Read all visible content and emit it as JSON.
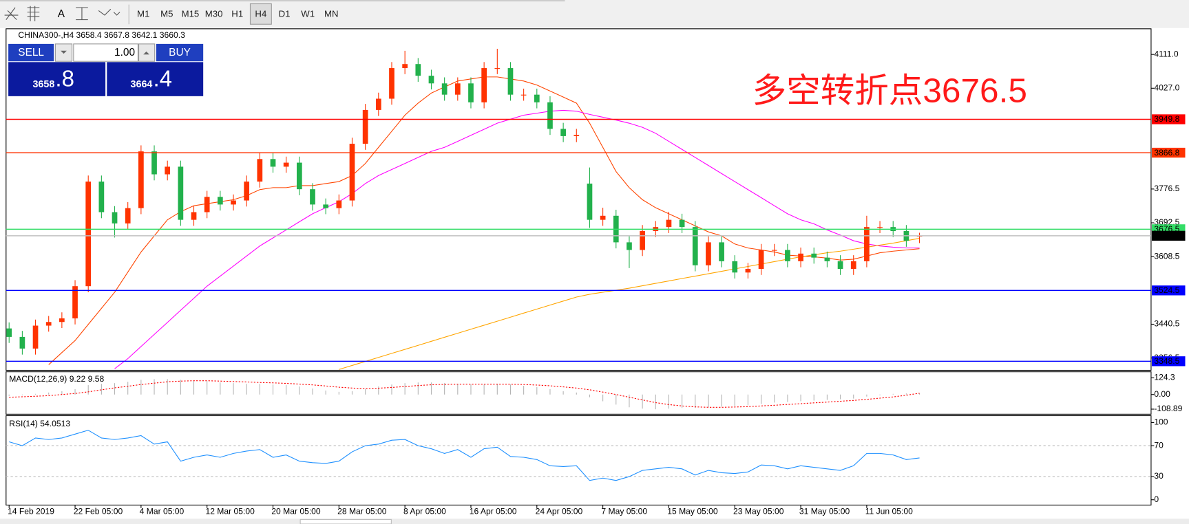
{
  "toolbar": {
    "text_tool": "A",
    "timeframes": [
      "M1",
      "M5",
      "M15",
      "M30",
      "H1",
      "H4",
      "D1",
      "W1",
      "MN"
    ],
    "active": "H4"
  },
  "trade_panel": {
    "sell_label": "SELL",
    "buy_label": "BUY",
    "lot": "1.00",
    "sell_main": "3658",
    "sell_tail": ".8",
    "buy_main": "3664",
    "buy_tail": ".4"
  },
  "annotation": "多空转折点3676.5",
  "chart_data": [
    {
      "type": "candlestick",
      "title": "CHINA300-,H4 3658.4 3667.8 3642.1 3660.3",
      "categories": [
        "14 Feb 2019",
        null,
        null,
        null,
        null,
        "22 Feb 05:00",
        null,
        null,
        null,
        null,
        "4 Mar 05:00",
        null,
        null,
        null,
        null,
        "12 Mar 05:00",
        null,
        null,
        null,
        null,
        "20 Mar 05:00",
        null,
        null,
        null,
        null,
        "28 Mar 05:00",
        null,
        null,
        null,
        null,
        "8 Apr 05:00",
        null,
        null,
        null,
        null,
        "16 Apr 05:00",
        null,
        null,
        null,
        null,
        "24 Apr 05:00",
        null,
        null,
        null,
        null,
        "7 May 05:00",
        null,
        null,
        null,
        null,
        "15 May 05:00",
        null,
        null,
        null,
        null,
        "23 May 05:00",
        null,
        null,
        null,
        null,
        "31 May 05:00",
        null,
        null,
        null,
        null,
        "11 Jun 05:00",
        null,
        null,
        null,
        null
      ],
      "open": [
        3430,
        3409,
        3380,
        3437,
        3446,
        3455,
        3535,
        3795,
        3719,
        3691,
        3729,
        3870,
        3813,
        3832,
        3700,
        3719,
        3757,
        3738,
        3748,
        3795,
        3851,
        3832,
        3842,
        3776,
        3738,
        3729,
        3748,
        3889,
        3973,
        4001,
        4077,
        4087,
        4058,
        4039,
        4011,
        4039,
        3992,
        4077,
        4077,
        4011,
        4011,
        3992,
        3926,
        3908,
        3790,
        3700,
        3710,
        3644,
        3625,
        3672,
        3682,
        3700,
        3682,
        3587,
        3644,
        3597,
        3569,
        3578,
        3625,
        3625,
        3597,
        3616,
        3606,
        3597,
        3578,
        3597,
        3682,
        3682,
        3672,
        3658.4
      ],
      "high": [
        3445,
        3424,
        3452,
        3461,
        3470,
        3550,
        3810,
        3810,
        3734,
        3744,
        3885,
        3885,
        3847,
        3847,
        3734,
        3772,
        3772,
        3763,
        3810,
        3866,
        3866,
        3857,
        3857,
        3791,
        3753,
        3763,
        3904,
        3988,
        4016,
        4092,
        4120,
        4102,
        4073,
        4054,
        4054,
        4054,
        4092,
        4125,
        4092,
        4026,
        4026,
        4007,
        3941,
        3926,
        3830,
        3730,
        3725,
        3659,
        3687,
        3697,
        3720,
        3715,
        3697,
        3659,
        3659,
        3612,
        3593,
        3640,
        3640,
        3640,
        3631,
        3631,
        3621,
        3612,
        3612,
        3710,
        3697,
        3697,
        3687,
        3667.8
      ],
      "low": [
        3394,
        3365,
        3365,
        3422,
        3431,
        3440,
        3520,
        3704,
        3656,
        3676,
        3714,
        3798,
        3798,
        3685,
        3685,
        3704,
        3723,
        3723,
        3733,
        3780,
        3817,
        3817,
        3761,
        3723,
        3714,
        3714,
        3733,
        3874,
        3958,
        3986,
        4062,
        4043,
        4024,
        3996,
        3996,
        3977,
        3977,
        4062,
        3996,
        3996,
        3977,
        3911,
        3893,
        3893,
        3680,
        3685,
        3629,
        3580,
        3610,
        3657,
        3667,
        3667,
        3572,
        3572,
        3582,
        3554,
        3554,
        3563,
        3610,
        3582,
        3582,
        3591,
        3582,
        3563,
        3563,
        3582,
        3667,
        3657,
        3633,
        3642.1
      ],
      "close": [
        3409,
        3380,
        3437,
        3446,
        3455,
        3535,
        3795,
        3719,
        3691,
        3729,
        3870,
        3813,
        3832,
        3700,
        3719,
        3757,
        3738,
        3748,
        3795,
        3851,
        3832,
        3842,
        3776,
        3738,
        3729,
        3748,
        3889,
        3973,
        4001,
        4077,
        4087,
        4058,
        4039,
        4011,
        4039,
        3992,
        4077,
        4077,
        4011,
        4011,
        3992,
        3926,
        3908,
        3911,
        3700,
        3710,
        3644,
        3625,
        3672,
        3682,
        3700,
        3682,
        3587,
        3644,
        3597,
        3569,
        3578,
        3625,
        3625,
        3597,
        3616,
        3606,
        3597,
        3578,
        3597,
        3682,
        3682,
        3672,
        3648,
        3660.3
      ],
      "up_color": "#ff3300",
      "down_color": "#22b14c",
      "ma": [
        {
          "color": "#ff4500",
          "values": [
            null,
            null,
            null,
            3340,
            3370,
            3400,
            3440,
            3480,
            3520,
            3570,
            3620,
            3660,
            3700,
            3720,
            3735,
            3740,
            3745,
            3750,
            3760,
            3775,
            3780,
            3780,
            3785,
            3785,
            3790,
            3795,
            3810,
            3840,
            3880,
            3920,
            3960,
            3990,
            4015,
            4030,
            4045,
            4050,
            4055,
            4055,
            4050,
            4045,
            4035,
            4020,
            4005,
            3990,
            3940,
            3880,
            3820,
            3780,
            3750,
            3730,
            3715,
            3700,
            3685,
            3670,
            3660,
            3640,
            3630,
            3625,
            3620,
            3612,
            3610,
            3608,
            3605,
            3600,
            3602,
            3610,
            3618,
            3622,
            3625,
            3628
          ]
        },
        {
          "color": "#ff00ff",
          "values": [
            null,
            null,
            null,
            null,
            null,
            null,
            null,
            null,
            3330,
            3355,
            3385,
            3415,
            3445,
            3475,
            3505,
            3535,
            3560,
            3585,
            3610,
            3635,
            3655,
            3675,
            3695,
            3715,
            3730,
            3745,
            3765,
            3790,
            3810,
            3825,
            3840,
            3855,
            3870,
            3880,
            3895,
            3910,
            3925,
            3940,
            3950,
            3960,
            3965,
            3970,
            3972,
            3970,
            3962,
            3955,
            3948,
            3940,
            3930,
            3915,
            3895,
            3875,
            3855,
            3835,
            3815,
            3795,
            3775,
            3755,
            3735,
            3715,
            3700,
            3690,
            3675,
            3662,
            3648,
            3640,
            3635,
            3632,
            3630,
            3630
          ]
        },
        {
          "color": "#ffa500",
          "values": [
            null,
            null,
            null,
            null,
            null,
            null,
            null,
            null,
            null,
            null,
            null,
            null,
            null,
            null,
            null,
            null,
            null,
            null,
            null,
            null,
            null,
            null,
            null,
            null,
            null,
            3328,
            3338,
            3348,
            3358,
            3368,
            3378,
            3388,
            3398,
            3408,
            3418,
            3428,
            3438,
            3448,
            3458,
            3468,
            3478,
            3488,
            3498,
            3508,
            3515,
            3520,
            3525,
            3530,
            3536,
            3542,
            3548,
            3554,
            3560,
            3566,
            3572,
            3578,
            3584,
            3590,
            3596,
            3602,
            3608,
            3613,
            3618,
            3622,
            3627,
            3632,
            3637,
            3642,
            3648,
            3654
          ]
        }
      ],
      "levels": [
        {
          "value": 3949.8,
          "color": "#ff0000"
        },
        {
          "value": 3866.8,
          "color": "#ff3300"
        },
        {
          "value": 3676.5,
          "color": "#33dd66"
        },
        {
          "value": 3660.3,
          "color": "#c0c0c0",
          "box_color": "#000000"
        },
        {
          "value": 3524.5,
          "color": "#0000ff"
        },
        {
          "value": 3348.5,
          "color": "#0000ff"
        }
      ],
      "ylim": [
        3326,
        4171
      ],
      "yticks": [
        {
          "value": 4111,
          "label": "4111.0"
        },
        {
          "value": 4027,
          "label": "4027.0"
        },
        3776.5,
        3692.5,
        3608.5,
        3440.5,
        3356.5
      ]
    },
    {
      "type": "macd",
      "title": "MACD(12,26,9) 9.22 9.58",
      "values": [
        -10,
        -5,
        5,
        15,
        25,
        40,
        70,
        80,
        85,
        95,
        110,
        115,
        115,
        110,
        105,
        100,
        90,
        85,
        80,
        80,
        75,
        70,
        60,
        45,
        30,
        20,
        25,
        40,
        60,
        75,
        85,
        90,
        90,
        85,
        80,
        75,
        75,
        80,
        75,
        65,
        55,
        40,
        25,
        15,
        -20,
        -50,
        -75,
        -95,
        -105,
        -110,
        -105,
        -100,
        -100,
        -95,
        -90,
        -85,
        -80,
        -70,
        -60,
        -55,
        -50,
        -45,
        -40,
        -35,
        -30,
        -15,
        -5,
        5,
        8,
        9.22
      ],
      "signal": [
        -20,
        -17,
        -13,
        -8,
        0,
        8,
        20,
        35,
        50,
        62,
        75,
        85,
        95,
        100,
        103,
        103,
        100,
        97,
        94,
        90,
        87,
        83,
        78,
        72,
        64,
        55,
        48,
        45,
        47,
        53,
        60,
        67,
        73,
        76,
        77,
        77,
        77,
        77,
        77,
        75,
        71,
        65,
        57,
        48,
        35,
        18,
        0,
        -20,
        -40,
        -60,
        -75,
        -85,
        -92,
        -95,
        -95,
        -93,
        -90,
        -85,
        -80,
        -74,
        -68,
        -62,
        -56,
        -50,
        -44,
        -36,
        -27,
        -18,
        -5,
        9.58
      ],
      "color": "#b4b4b4",
      "signal_color": "#ff0000",
      "ylim": [
        -141,
        164
      ],
      "yticks": [
        124.3,
        {
          "value": 0,
          "label": "0.00"
        },
        -108.89
      ]
    },
    {
      "type": "line",
      "title": "RSI(14) 54.0513",
      "values": [
        75,
        70,
        80,
        78,
        80,
        85,
        90,
        80,
        78,
        80,
        83,
        72,
        75,
        50,
        55,
        58,
        55,
        60,
        63,
        65,
        55,
        58,
        50,
        48,
        47,
        50,
        62,
        70,
        72,
        77,
        78,
        70,
        66,
        60,
        65,
        55,
        66,
        68,
        56,
        55,
        52,
        44,
        43,
        44,
        25,
        28,
        25,
        30,
        38,
        40,
        42,
        40,
        32,
        38,
        35,
        34,
        36,
        45,
        44,
        40,
        44,
        42,
        40,
        38,
        44,
        60,
        60,
        58,
        52,
        54.0513
      ],
      "color": "#1e90ff",
      "dashed_levels": [
        70,
        30
      ],
      "ylim": [
        -5.9,
        107.8
      ],
      "yticks": [
        100,
        70,
        30,
        0
      ]
    }
  ]
}
